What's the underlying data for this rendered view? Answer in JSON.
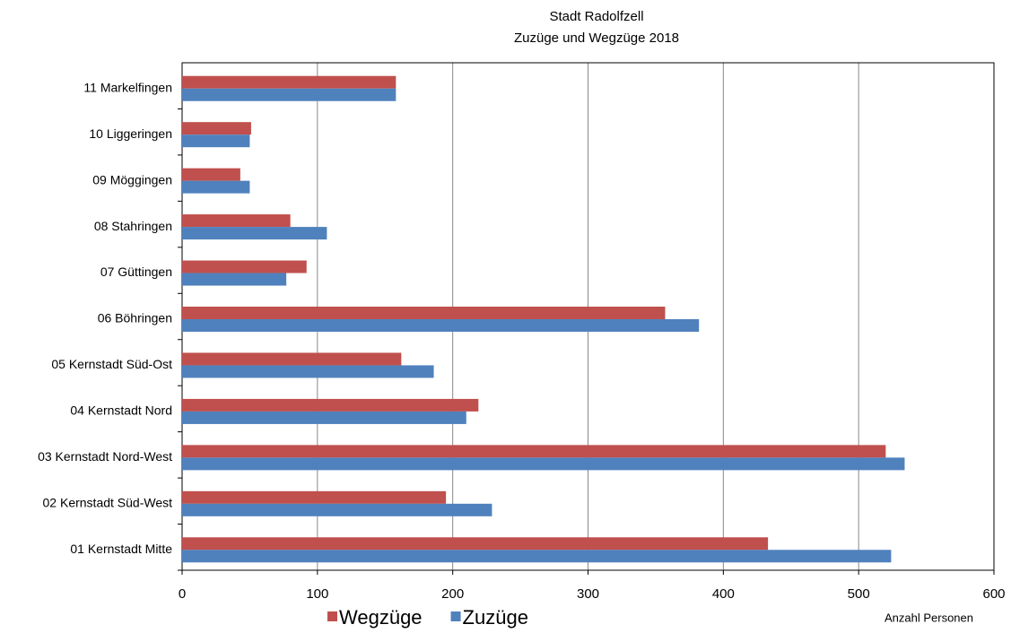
{
  "chart_data": {
    "type": "hbar",
    "title": "Stadt Radolfzell",
    "subtitle": "Zuzüge und Wegzüge 2018",
    "x_label": "Anzahl Personen",
    "categories": [
      "01 Kernstadt Mitte",
      "02 Kernstadt Süd-West",
      "03 Kernstadt Nord-West",
      "04 Kernstadt Nord",
      "05 Kernstadt Süd-Ost",
      "06 Böhringen",
      "07 Güttingen",
      "08 Stahringen",
      "09 Möggingen",
      "10 Liggeringen",
      "11 Markelfingen"
    ],
    "series": [
      {
        "name": "Wegzüge",
        "color": "#c0504d",
        "values": [
          433,
          195,
          520,
          219,
          162,
          357,
          92,
          80,
          43,
          51,
          158
        ]
      },
      {
        "name": "Zuzüge",
        "color": "#4f81bd",
        "values": [
          524,
          229,
          534,
          210,
          186,
          382,
          77,
          107,
          50,
          50,
          158
        ]
      }
    ],
    "xlim": [
      0,
      600
    ],
    "xticks": [
      0,
      100,
      200,
      300,
      400,
      500,
      600
    ],
    "grid": true,
    "legend": "bottom"
  }
}
